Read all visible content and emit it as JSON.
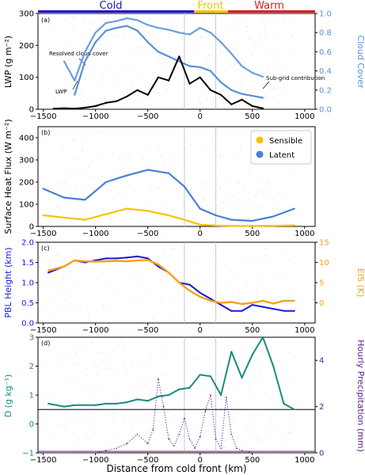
{
  "figure": {
    "header": {
      "segments": [
        {
          "label": "Cold",
          "color": "#1b14c8"
        },
        {
          "label": "Front",
          "color": "#f5c400"
        },
        {
          "label": "Warm",
          "color": "#d61e1e"
        }
      ]
    },
    "shared_xlabel": "Distance from cold front (km)",
    "colors": {
      "cloud": "#5b8fd6",
      "lwp": "#000000",
      "sensible": "#f5c400",
      "latent": "#4a7fd4",
      "pbl": "#1a1ad6",
      "eis": "#f5a21a",
      "D": "#1a8a80",
      "precip": "#5a1a8c",
      "gray": "#999999"
    }
  },
  "chart_data": [
    {
      "panel": "(a)",
      "type": "line",
      "ylabel": "LWP (g m⁻²)",
      "y2label": "Cloud Cover",
      "xlim": [
        -1550,
        1100
      ],
      "ylim": [
        0,
        300
      ],
      "y2lim": [
        0,
        1.0
      ],
      "xticks": [
        "-1500",
        "-1000",
        "-500",
        "0",
        "500",
        "1000"
      ],
      "yticks": [
        "0",
        "100",
        "200",
        "300"
      ],
      "y2ticks": [
        "0.0",
        "0.2",
        "0.4",
        "0.6",
        "0.8",
        "1.0"
      ],
      "annotations": [
        "Resolved cloud cover",
        "LWP",
        "Sub-grid contribution"
      ],
      "series": [
        {
          "name": "Resolved cloud cover",
          "axis": "right",
          "x": [
            -1300,
            -1200,
            -1100,
            -1000,
            -900,
            -800,
            -700,
            -600,
            -500,
            -400,
            -300,
            -200,
            -100,
            0,
            100,
            200,
            300,
            400,
            500,
            600
          ],
          "values": [
            0.5,
            0.3,
            0.6,
            0.8,
            0.9,
            0.92,
            0.95,
            0.93,
            0.88,
            0.85,
            0.83,
            0.8,
            0.78,
            0.85,
            0.8,
            0.7,
            0.58,
            0.45,
            0.38,
            0.34
          ]
        },
        {
          "name": "Sub-grid contribution",
          "axis": "right",
          "x": [
            -1200,
            -1100,
            -1000,
            -900,
            -800,
            -700,
            -600,
            -500,
            -400,
            -300,
            -200,
            -100,
            0,
            100,
            200,
            300,
            400,
            500,
            600
          ],
          "values": [
            0.15,
            0.5,
            0.7,
            0.82,
            0.85,
            0.87,
            0.82,
            0.7,
            0.6,
            0.55,
            0.5,
            0.45,
            0.44,
            0.4,
            0.28,
            0.2,
            0.16,
            0.14,
            0.12
          ]
        },
        {
          "name": "LWP",
          "axis": "left",
          "x": [
            -1400,
            -1300,
            -1200,
            -1100,
            -1000,
            -900,
            -800,
            -700,
            -600,
            -500,
            -400,
            -300,
            -200,
            -100,
            0,
            100,
            200,
            300,
            400,
            500,
            600
          ],
          "values": [
            2,
            3,
            2,
            5,
            10,
            20,
            25,
            40,
            60,
            45,
            100,
            90,
            165,
            80,
            100,
            60,
            45,
            15,
            30,
            10,
            3
          ]
        }
      ]
    },
    {
      "panel": "(b)",
      "type": "line",
      "ylabel": "Surface Heat Flux (W m⁻²)",
      "xlim": [
        -1550,
        1100
      ],
      "ylim": [
        0,
        450
      ],
      "xticks": [
        "-1500",
        "-1000",
        "-500",
        "0",
        "500",
        "1000"
      ],
      "yticks": [
        "0",
        "100",
        "200",
        "300",
        "400"
      ],
      "legend": {
        "position": "top-right",
        "entries": [
          "Sensible",
          "Latent"
        ]
      },
      "series": [
        {
          "name": "Latent",
          "x": [
            -1500,
            -1300,
            -1100,
            -900,
            -700,
            -500,
            -300,
            -150,
            0,
            150,
            300,
            500,
            700,
            900
          ],
          "values": [
            170,
            130,
            120,
            200,
            230,
            255,
            240,
            180,
            80,
            50,
            30,
            25,
            45,
            80
          ]
        },
        {
          "name": "Sensible",
          "x": [
            -1500,
            -1300,
            -1100,
            -900,
            -700,
            -500,
            -300,
            -150,
            0,
            150,
            300,
            500,
            700,
            900
          ],
          "values": [
            50,
            40,
            30,
            55,
            80,
            70,
            50,
            30,
            8,
            4,
            2,
            2,
            3,
            5
          ]
        }
      ]
    },
    {
      "panel": "(c)",
      "type": "line",
      "ylabel": "PBL Height (km)",
      "y2label": "EIS (K)",
      "xlim": [
        -1550,
        1100
      ],
      "ylim": [
        0,
        2.0
      ],
      "y2lim": [
        -5,
        15
      ],
      "xticks": [
        "-1500",
        "-1000",
        "-500",
        "0",
        "500",
        "1000"
      ],
      "yticks": [
        "0.0",
        "0.5",
        "1.0",
        "1.5",
        "2.0"
      ],
      "y2ticks": [
        "0",
        "5",
        "10",
        "15"
      ],
      "series": [
        {
          "name": "PBL Height",
          "axis": "left",
          "x": [
            -1450,
            -1300,
            -1200,
            -1100,
            -1000,
            -900,
            -800,
            -700,
            -600,
            -500,
            -400,
            -300,
            -200,
            -100,
            0,
            100,
            200,
            300,
            400,
            500,
            600,
            700,
            800,
            900
          ],
          "values": [
            1.25,
            1.4,
            1.55,
            1.5,
            1.55,
            1.6,
            1.6,
            1.62,
            1.65,
            1.6,
            1.4,
            1.25,
            1.0,
            0.95,
            0.75,
            0.6,
            0.45,
            0.3,
            0.3,
            0.45,
            0.4,
            0.35,
            0.3,
            0.3
          ]
        },
        {
          "name": "EIS",
          "axis": "right",
          "x": [
            -1450,
            -1300,
            -1200,
            -1100,
            -1000,
            -900,
            -800,
            -700,
            -600,
            -500,
            -400,
            -300,
            -200,
            -100,
            0,
            100,
            200,
            300,
            400,
            500,
            600,
            700,
            800,
            900
          ],
          "values": [
            8,
            9,
            10.5,
            10.3,
            10.2,
            10.3,
            10.4,
            10.3,
            10.5,
            10.6,
            9.5,
            7.5,
            5.0,
            3.0,
            1.5,
            0.5,
            0.0,
            0.2,
            -0.3,
            0.0,
            0.5,
            -0.2,
            0.5,
            0.5
          ]
        }
      ]
    },
    {
      "panel": "(d)",
      "type": "line",
      "ylabel": "D (g kg⁻¹)",
      "y2label": "Hourly Precipitation (mm)",
      "xlim": [
        -1550,
        1100
      ],
      "ylim": [
        -1,
        3
      ],
      "y2lim": [
        0,
        5
      ],
      "xticks": [
        "-1500",
        "-1000",
        "-500",
        "0",
        "500",
        "1000"
      ],
      "yticks": [
        "-1",
        "0",
        "1",
        "2",
        "3"
      ],
      "y2ticks": [
        "0",
        "2",
        "4"
      ],
      "series": [
        {
          "name": "D",
          "axis": "left",
          "x": [
            -1450,
            -1300,
            -1200,
            -1100,
            -1000,
            -900,
            -800,
            -700,
            -600,
            -500,
            -400,
            -300,
            -200,
            -100,
            0,
            100,
            200,
            300,
            400,
            500,
            600,
            700,
            800,
            900
          ],
          "values": [
            0.7,
            0.6,
            0.65,
            0.65,
            0.65,
            0.7,
            0.7,
            0.75,
            0.85,
            0.8,
            0.95,
            1.0,
            1.2,
            1.25,
            1.7,
            1.65,
            1.0,
            2.5,
            1.6,
            2.4,
            3.0,
            2.0,
            0.7,
            0.5
          ]
        },
        {
          "name": "Hourly Precipitation",
          "axis": "right",
          "x": [
            -1500,
            -1000,
            -900,
            -800,
            -700,
            -600,
            -500,
            -450,
            -400,
            -350,
            -300,
            -250,
            -200,
            -150,
            -100,
            -50,
            0,
            50,
            100,
            150,
            200,
            250,
            300,
            350,
            400,
            500,
            1000
          ],
          "values": [
            0,
            0,
            0.1,
            0.2,
            0.4,
            0.8,
            0.4,
            1.0,
            3.2,
            2.0,
            0.6,
            0.3,
            0.8,
            1.5,
            0.6,
            0.2,
            0.7,
            1.8,
            2.5,
            0.6,
            0.2,
            2.4,
            0.8,
            0.2,
            0.1,
            0,
            0
          ]
        }
      ]
    }
  ]
}
